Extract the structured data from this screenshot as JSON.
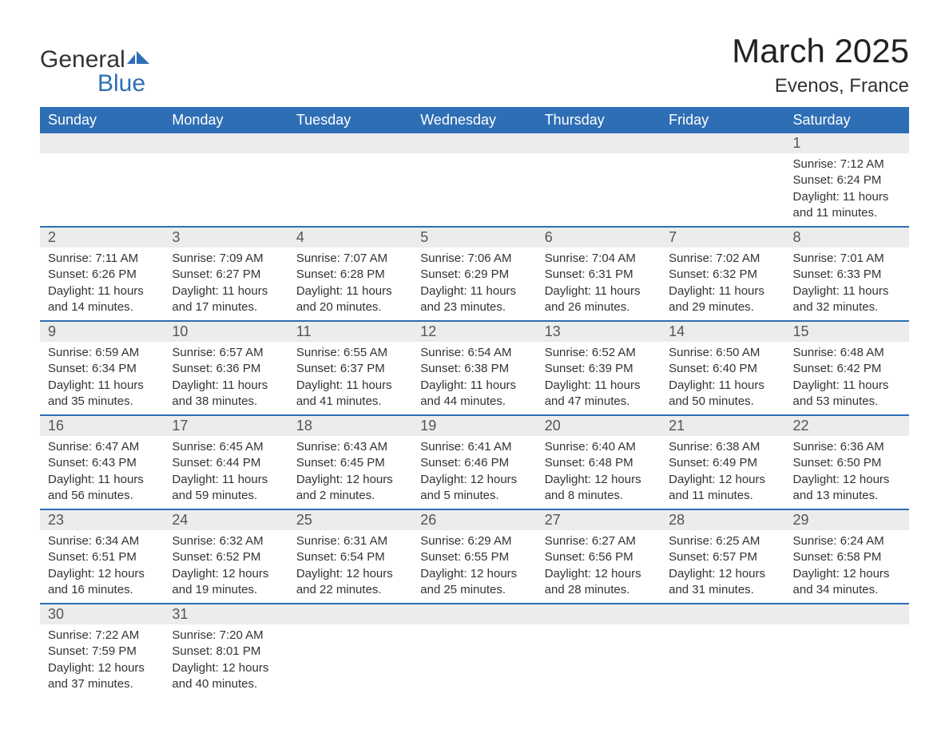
{
  "brand": {
    "part1": "General",
    "part2": "Blue"
  },
  "title": "March 2025",
  "location": "Evenos, France",
  "colors": {
    "header_bg": "#2e6eb5",
    "header_text": "#ffffff",
    "daynum_bg": "#ececec",
    "border": "#2e6eb5",
    "body_text": "#333333",
    "background": "#ffffff"
  },
  "weekdays": [
    "Sunday",
    "Monday",
    "Tuesday",
    "Wednesday",
    "Thursday",
    "Friday",
    "Saturday"
  ],
  "weeks": [
    [
      null,
      null,
      null,
      null,
      null,
      null,
      {
        "n": "1",
        "sunrise": "Sunrise: 7:12 AM",
        "sunset": "Sunset: 6:24 PM",
        "daylight": "Daylight: 11 hours and 11 minutes."
      }
    ],
    [
      {
        "n": "2",
        "sunrise": "Sunrise: 7:11 AM",
        "sunset": "Sunset: 6:26 PM",
        "daylight": "Daylight: 11 hours and 14 minutes."
      },
      {
        "n": "3",
        "sunrise": "Sunrise: 7:09 AM",
        "sunset": "Sunset: 6:27 PM",
        "daylight": "Daylight: 11 hours and 17 minutes."
      },
      {
        "n": "4",
        "sunrise": "Sunrise: 7:07 AM",
        "sunset": "Sunset: 6:28 PM",
        "daylight": "Daylight: 11 hours and 20 minutes."
      },
      {
        "n": "5",
        "sunrise": "Sunrise: 7:06 AM",
        "sunset": "Sunset: 6:29 PM",
        "daylight": "Daylight: 11 hours and 23 minutes."
      },
      {
        "n": "6",
        "sunrise": "Sunrise: 7:04 AM",
        "sunset": "Sunset: 6:31 PM",
        "daylight": "Daylight: 11 hours and 26 minutes."
      },
      {
        "n": "7",
        "sunrise": "Sunrise: 7:02 AM",
        "sunset": "Sunset: 6:32 PM",
        "daylight": "Daylight: 11 hours and 29 minutes."
      },
      {
        "n": "8",
        "sunrise": "Sunrise: 7:01 AM",
        "sunset": "Sunset: 6:33 PM",
        "daylight": "Daylight: 11 hours and 32 minutes."
      }
    ],
    [
      {
        "n": "9",
        "sunrise": "Sunrise: 6:59 AM",
        "sunset": "Sunset: 6:34 PM",
        "daylight": "Daylight: 11 hours and 35 minutes."
      },
      {
        "n": "10",
        "sunrise": "Sunrise: 6:57 AM",
        "sunset": "Sunset: 6:36 PM",
        "daylight": "Daylight: 11 hours and 38 minutes."
      },
      {
        "n": "11",
        "sunrise": "Sunrise: 6:55 AM",
        "sunset": "Sunset: 6:37 PM",
        "daylight": "Daylight: 11 hours and 41 minutes."
      },
      {
        "n": "12",
        "sunrise": "Sunrise: 6:54 AM",
        "sunset": "Sunset: 6:38 PM",
        "daylight": "Daylight: 11 hours and 44 minutes."
      },
      {
        "n": "13",
        "sunrise": "Sunrise: 6:52 AM",
        "sunset": "Sunset: 6:39 PM",
        "daylight": "Daylight: 11 hours and 47 minutes."
      },
      {
        "n": "14",
        "sunrise": "Sunrise: 6:50 AM",
        "sunset": "Sunset: 6:40 PM",
        "daylight": "Daylight: 11 hours and 50 minutes."
      },
      {
        "n": "15",
        "sunrise": "Sunrise: 6:48 AM",
        "sunset": "Sunset: 6:42 PM",
        "daylight": "Daylight: 11 hours and 53 minutes."
      }
    ],
    [
      {
        "n": "16",
        "sunrise": "Sunrise: 6:47 AM",
        "sunset": "Sunset: 6:43 PM",
        "daylight": "Daylight: 11 hours and 56 minutes."
      },
      {
        "n": "17",
        "sunrise": "Sunrise: 6:45 AM",
        "sunset": "Sunset: 6:44 PM",
        "daylight": "Daylight: 11 hours and 59 minutes."
      },
      {
        "n": "18",
        "sunrise": "Sunrise: 6:43 AM",
        "sunset": "Sunset: 6:45 PM",
        "daylight": "Daylight: 12 hours and 2 minutes."
      },
      {
        "n": "19",
        "sunrise": "Sunrise: 6:41 AM",
        "sunset": "Sunset: 6:46 PM",
        "daylight": "Daylight: 12 hours and 5 minutes."
      },
      {
        "n": "20",
        "sunrise": "Sunrise: 6:40 AM",
        "sunset": "Sunset: 6:48 PM",
        "daylight": "Daylight: 12 hours and 8 minutes."
      },
      {
        "n": "21",
        "sunrise": "Sunrise: 6:38 AM",
        "sunset": "Sunset: 6:49 PM",
        "daylight": "Daylight: 12 hours and 11 minutes."
      },
      {
        "n": "22",
        "sunrise": "Sunrise: 6:36 AM",
        "sunset": "Sunset: 6:50 PM",
        "daylight": "Daylight: 12 hours and 13 minutes."
      }
    ],
    [
      {
        "n": "23",
        "sunrise": "Sunrise: 6:34 AM",
        "sunset": "Sunset: 6:51 PM",
        "daylight": "Daylight: 12 hours and 16 minutes."
      },
      {
        "n": "24",
        "sunrise": "Sunrise: 6:32 AM",
        "sunset": "Sunset: 6:52 PM",
        "daylight": "Daylight: 12 hours and 19 minutes."
      },
      {
        "n": "25",
        "sunrise": "Sunrise: 6:31 AM",
        "sunset": "Sunset: 6:54 PM",
        "daylight": "Daylight: 12 hours and 22 minutes."
      },
      {
        "n": "26",
        "sunrise": "Sunrise: 6:29 AM",
        "sunset": "Sunset: 6:55 PM",
        "daylight": "Daylight: 12 hours and 25 minutes."
      },
      {
        "n": "27",
        "sunrise": "Sunrise: 6:27 AM",
        "sunset": "Sunset: 6:56 PM",
        "daylight": "Daylight: 12 hours and 28 minutes."
      },
      {
        "n": "28",
        "sunrise": "Sunrise: 6:25 AM",
        "sunset": "Sunset: 6:57 PM",
        "daylight": "Daylight: 12 hours and 31 minutes."
      },
      {
        "n": "29",
        "sunrise": "Sunrise: 6:24 AM",
        "sunset": "Sunset: 6:58 PM",
        "daylight": "Daylight: 12 hours and 34 minutes."
      }
    ],
    [
      {
        "n": "30",
        "sunrise": "Sunrise: 7:22 AM",
        "sunset": "Sunset: 7:59 PM",
        "daylight": "Daylight: 12 hours and 37 minutes."
      },
      {
        "n": "31",
        "sunrise": "Sunrise: 7:20 AM",
        "sunset": "Sunset: 8:01 PM",
        "daylight": "Daylight: 12 hours and 40 minutes."
      },
      null,
      null,
      null,
      null,
      null
    ]
  ]
}
